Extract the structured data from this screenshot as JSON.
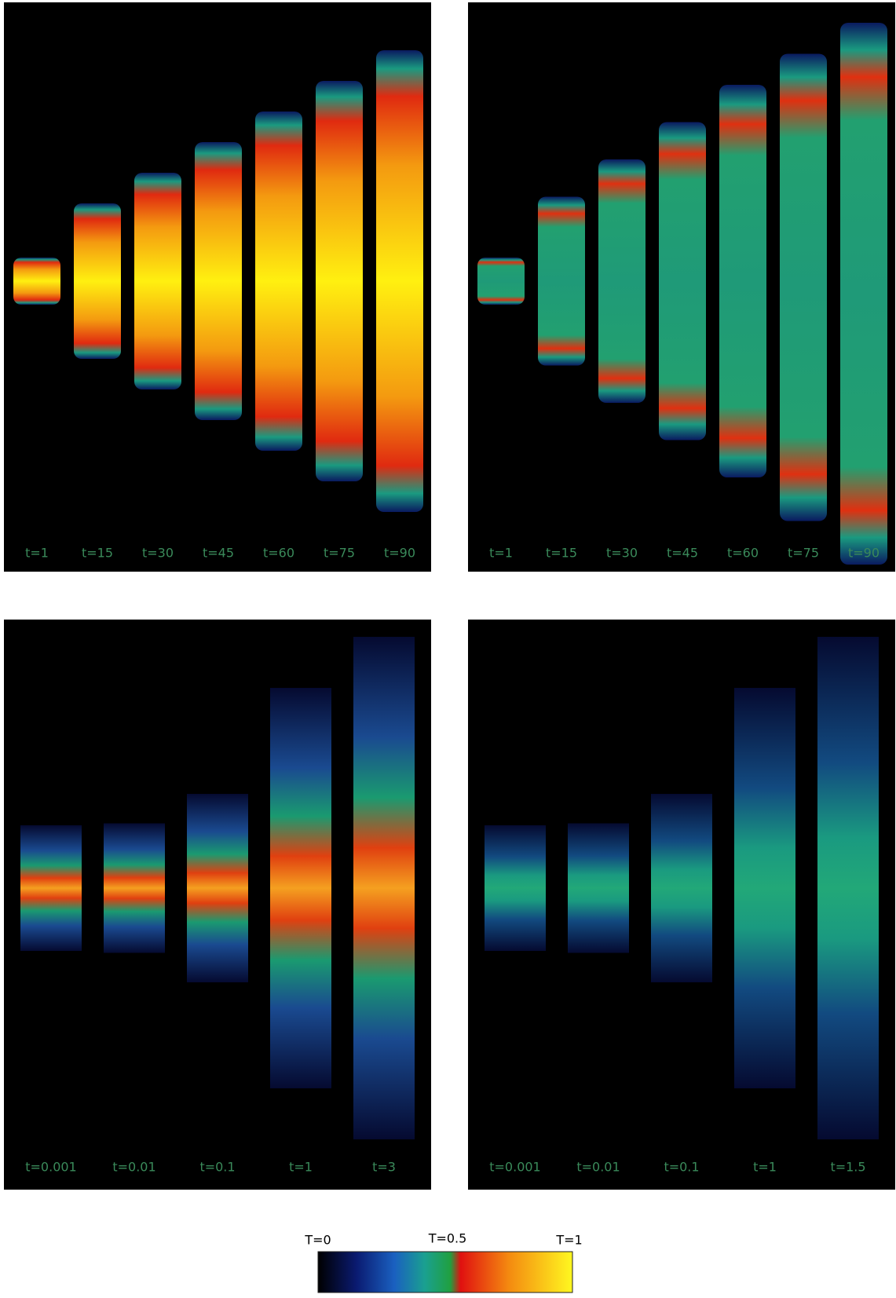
{
  "panels": [
    {
      "labels": [
        "t=1",
        "t=15",
        "t=30",
        "t=45",
        "t=60",
        "t=75",
        "t=90"
      ]
    },
    {
      "labels": [
        "t=1",
        "t=15",
        "t=30",
        "t=45",
        "t=60",
        "t=75",
        "t=90"
      ]
    },
    {
      "labels": [
        "t=0.001",
        "t=0.01",
        "t=0.1",
        "t=1",
        "t=3"
      ]
    },
    {
      "labels": [
        "t=0.001",
        "t=0.01",
        "t=0.1",
        "t=1",
        "t=1.5"
      ]
    }
  ],
  "colorbar": {
    "labels": [
      "T=0",
      "T=0.5",
      "T=1"
    ]
  }
}
